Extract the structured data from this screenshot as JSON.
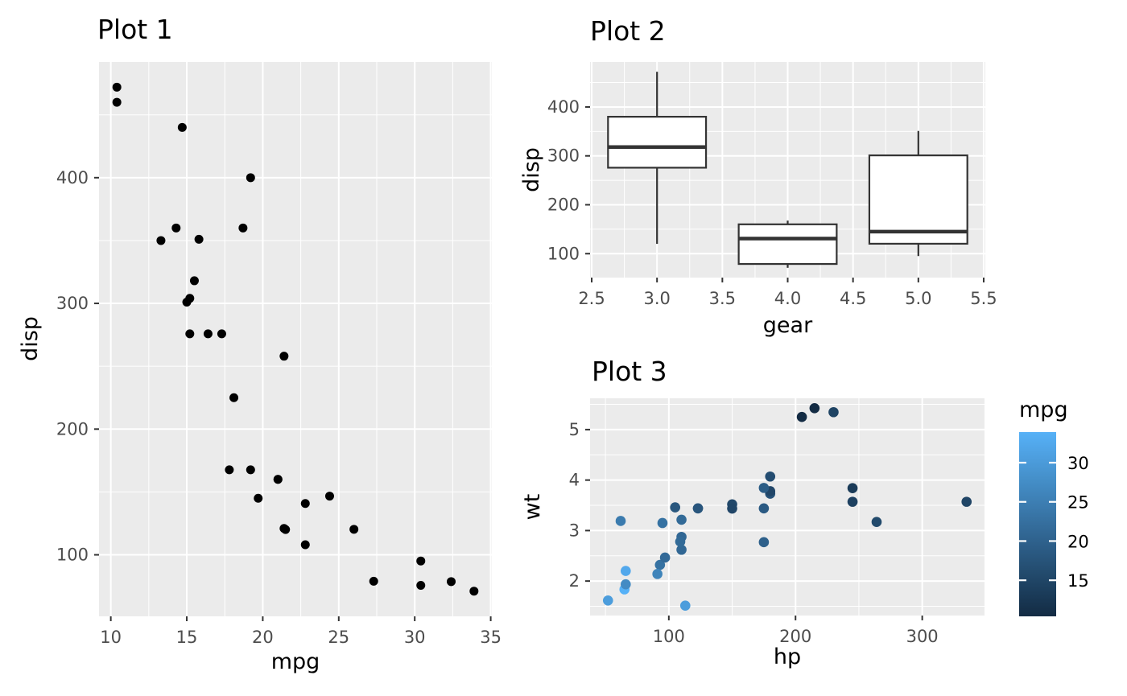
{
  "figure": {
    "background": "#ffffff",
    "panel_background": "#ebebeb",
    "grid_color": "#ffffff",
    "tick_mark_color": "#333333",
    "tick_label_color": "#4d4d4d",
    "title_color": "#000000"
  },
  "chart_data": [
    {
      "type": "scatter",
      "title": "Plot 1",
      "xlabel": "mpg",
      "ylabel": "disp",
      "xlim": [
        9.225,
        35.075
      ],
      "ylim": [
        51.06,
        492.05
      ],
      "xticks": [
        10,
        15,
        20,
        25,
        30,
        35
      ],
      "yticks": [
        100,
        200,
        300,
        400
      ],
      "xminor": [
        12.5,
        17.5,
        22.5,
        27.5,
        32.5
      ],
      "yminor": [
        150,
        250,
        350,
        450
      ],
      "point_color": "#000000",
      "points": [
        [
          21,
          160
        ],
        [
          21,
          160
        ],
        [
          22.8,
          108
        ],
        [
          21.4,
          258
        ],
        [
          18.7,
          360
        ],
        [
          18.1,
          225
        ],
        [
          14.3,
          360
        ],
        [
          24.4,
          146.7
        ],
        [
          22.8,
          140.8
        ],
        [
          19.2,
          167.6
        ],
        [
          17.8,
          167.6
        ],
        [
          16.4,
          275.8
        ],
        [
          17.3,
          275.8
        ],
        [
          15.2,
          275.8
        ],
        [
          10.4,
          472
        ],
        [
          10.4,
          460
        ],
        [
          14.7,
          440
        ],
        [
          32.4,
          78.7
        ],
        [
          30.4,
          75.7
        ],
        [
          33.9,
          71.1
        ],
        [
          21.5,
          120.1
        ],
        [
          15.5,
          318
        ],
        [
          15.2,
          304
        ],
        [
          13.3,
          350
        ],
        [
          19.2,
          400
        ],
        [
          27.3,
          79
        ],
        [
          26,
          120.3
        ],
        [
          30.4,
          95.1
        ],
        [
          15.8,
          351
        ],
        [
          19.7,
          145
        ],
        [
          15,
          301
        ],
        [
          21.4,
          121
        ]
      ]
    },
    {
      "type": "boxplot",
      "title": "Plot 2",
      "xlabel": "gear",
      "ylabel": "disp",
      "xlim": [
        2.4875,
        5.5125
      ],
      "ylim": [
        51.06,
        492.05
      ],
      "xticks": [
        2.5,
        3.0,
        3.5,
        4.0,
        4.5,
        5.0,
        5.5
      ],
      "yticks": [
        100,
        200,
        300,
        400
      ],
      "xminor": [
        2.75,
        3.25,
        3.75,
        4.25,
        4.75,
        5.25
      ],
      "yminor": [
        150,
        250,
        350,
        450
      ],
      "xtick_labels": [
        "2.5",
        "3.0",
        "3.5",
        "4.0",
        "4.5",
        "5.0",
        "5.5"
      ],
      "box_width": 0.75,
      "box_fill": "#ffffff",
      "box_stroke": "#333333",
      "boxes": [
        {
          "x": 3,
          "min": 120.1,
          "q1": 275.8,
          "median": 318,
          "q3": 380,
          "max": 472
        },
        {
          "x": 4,
          "min": 71.1,
          "q1": 78.9,
          "median": 130.9,
          "q3": 160,
          "max": 167.6
        },
        {
          "x": 5,
          "min": 95.1,
          "q1": 120.3,
          "median": 145,
          "q3": 301,
          "max": 351
        }
      ]
    },
    {
      "type": "scatter",
      "title": "Plot 3",
      "xlabel": "hp",
      "ylabel": "wt",
      "xlim": [
        37.85,
        349.15
      ],
      "ylim": [
        1.317,
        5.62
      ],
      "xticks": [
        100,
        200,
        300
      ],
      "yticks": [
        2,
        3,
        4,
        5
      ],
      "xminor": [
        50,
        150,
        250
      ],
      "yminor": [
        1.5,
        2.5,
        3.5,
        4.5,
        5.5
      ],
      "color_by": "mpg",
      "points": [
        [
          110,
          2.62,
          21
        ],
        [
          110,
          2.875,
          21
        ],
        [
          93,
          2.32,
          22.8
        ],
        [
          110,
          3.215,
          21.4
        ],
        [
          175,
          3.44,
          18.7
        ],
        [
          105,
          3.46,
          18.1
        ],
        [
          245,
          3.57,
          14.3
        ],
        [
          62,
          3.19,
          24.4
        ],
        [
          95,
          3.15,
          22.8
        ],
        [
          123,
          3.44,
          19.2
        ],
        [
          123,
          3.44,
          17.8
        ],
        [
          180,
          4.07,
          16.4
        ],
        [
          180,
          3.73,
          17.3
        ],
        [
          180,
          3.78,
          15.2
        ],
        [
          205,
          5.25,
          10.4
        ],
        [
          215,
          5.424,
          10.4
        ],
        [
          230,
          5.345,
          14.7
        ],
        [
          66,
          2.2,
          32.4
        ],
        [
          52,
          1.615,
          30.4
        ],
        [
          65,
          1.835,
          33.9
        ],
        [
          97,
          2.465,
          21.5
        ],
        [
          150,
          3.52,
          15.5
        ],
        [
          150,
          3.435,
          15.2
        ],
        [
          245,
          3.84,
          13.3
        ],
        [
          175,
          3.845,
          19.2
        ],
        [
          66,
          1.935,
          27.3
        ],
        [
          91,
          2.14,
          26
        ],
        [
          113,
          1.513,
          30.4
        ],
        [
          264,
          3.17,
          15.8
        ],
        [
          175,
          2.77,
          19.7
        ],
        [
          335,
          3.57,
          15
        ],
        [
          109,
          2.78,
          21.4
        ]
      ],
      "legend": {
        "title": "mpg",
        "domain": [
          10.4,
          33.9
        ],
        "ticks": [
          15,
          20,
          25,
          30
        ],
        "color_low": "#132B43",
        "color_high": "#56B1F7"
      }
    }
  ]
}
